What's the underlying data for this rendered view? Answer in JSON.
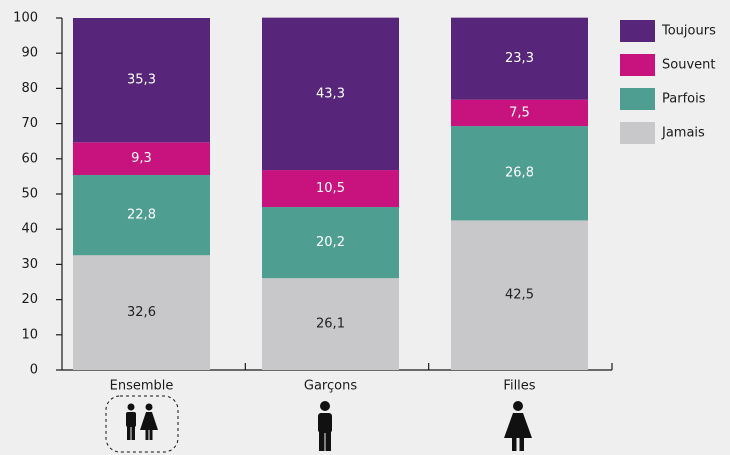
{
  "chart_data": {
    "type": "stacked_bar",
    "categories": [
      "Ensemble",
      "Garçons",
      "Filles"
    ],
    "series": [
      {
        "name": "Jamais",
        "color": "#c8c7c9",
        "values": [
          32.6,
          26.1,
          42.5
        ],
        "value_labels": [
          "32,6",
          "26,1",
          "42,5"
        ]
      },
      {
        "name": "Parfois",
        "color": "#4f9e92",
        "values": [
          22.8,
          20.2,
          26.8
        ],
        "value_labels": [
          "22,8",
          "20,2",
          "26,8"
        ]
      },
      {
        "name": "Souvent",
        "color": "#c8137e",
        "values": [
          9.3,
          10.5,
          7.5
        ],
        "value_labels": [
          "9,3",
          "10,5",
          "7,5"
        ]
      },
      {
        "name": "Toujours",
        "color": "#57267a",
        "values": [
          35.3,
          43.3,
          23.3
        ],
        "value_labels": [
          "35,3",
          "43,3",
          "23,3"
        ]
      }
    ],
    "ylim": [
      0,
      100
    ],
    "yticks": [
      0,
      10,
      20,
      30,
      40,
      50,
      60,
      70,
      80,
      90,
      100
    ],
    "legend": "right"
  }
}
